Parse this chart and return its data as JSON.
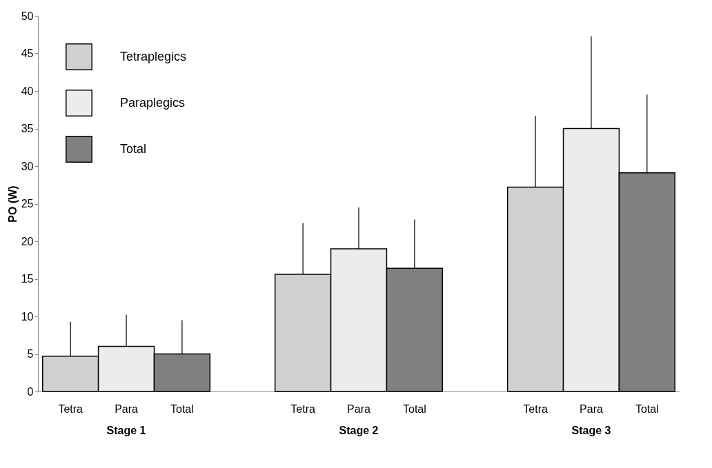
{
  "chart_data": {
    "type": "bar",
    "ylabel": "PO (W)",
    "categories": [
      "Stage 1",
      "Stage 2",
      "Stage 3"
    ],
    "series": [
      {
        "name": "Tetraplegics",
        "color": "#d0d0d0",
        "values": [
          4.7,
          15.6,
          27.2
        ],
        "errors": [
          [
            4.7,
            9.3
          ],
          [
            15.6,
            22.4
          ],
          [
            27.2,
            36.7
          ]
        ]
      },
      {
        "name": "Paraplegics",
        "color": "#ececec",
        "values": [
          6.0,
          19.0,
          35.0
        ],
        "errors": [
          [
            6.0,
            10.2
          ],
          [
            19.0,
            24.5
          ],
          [
            35.0,
            47.3
          ]
        ]
      },
      {
        "name": "Total",
        "color": "#808080",
        "values": [
          5.0,
          16.4,
          29.1
        ],
        "errors": [
          [
            5.0,
            9.5
          ],
          [
            16.4,
            22.9
          ],
          [
            29.1,
            39.5
          ]
        ]
      }
    ],
    "annotations": [
      "Tetra",
      "Para",
      "Total",
      "Tetra",
      "Para",
      "Total",
      "Tetra",
      "Para",
      "Total"
    ],
    "ylim": [
      0,
      50
    ],
    "yticks": [
      0,
      5,
      10,
      15,
      20,
      25,
      30,
      35,
      40,
      45,
      50
    ],
    "grid": false,
    "legend": "top left"
  }
}
